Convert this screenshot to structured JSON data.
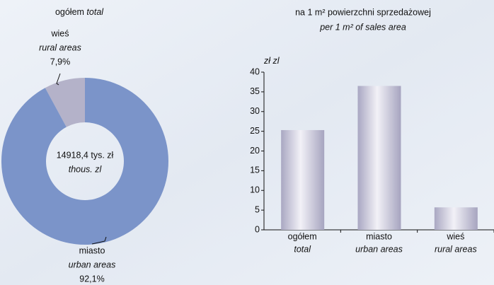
{
  "chart_data": [
    {
      "type": "donut",
      "title": "ogółem",
      "title_en": "total",
      "categories": [
        "wieś",
        "miasto"
      ],
      "categories_en": [
        "rural areas",
        "urban areas"
      ],
      "values": [
        7.9,
        92.1
      ],
      "value_labels": [
        "7,9%",
        "92,1%"
      ],
      "colors": [
        "#b4b2c9",
        "#7b94c9"
      ],
      "annotations": [
        "14918,4 tys. zł",
        "thous. zl"
      ]
    },
    {
      "type": "bar",
      "title": "na 1 m² powierzchni sprzedażowej",
      "subtitle": "per 1 m² of sales area",
      "ylabel": "zł",
      "ylabel_en": "zl",
      "categories": [
        "ogółem",
        "miasto",
        "wieś"
      ],
      "categories_en": [
        "total",
        "urban areas",
        "rural areas"
      ],
      "values": [
        25.3,
        36.5,
        5.7
      ],
      "ylim": [
        0,
        40
      ],
      "yticks": [
        0,
        5,
        10,
        15,
        20,
        25,
        30,
        35,
        40
      ],
      "grid": false
    }
  ]
}
